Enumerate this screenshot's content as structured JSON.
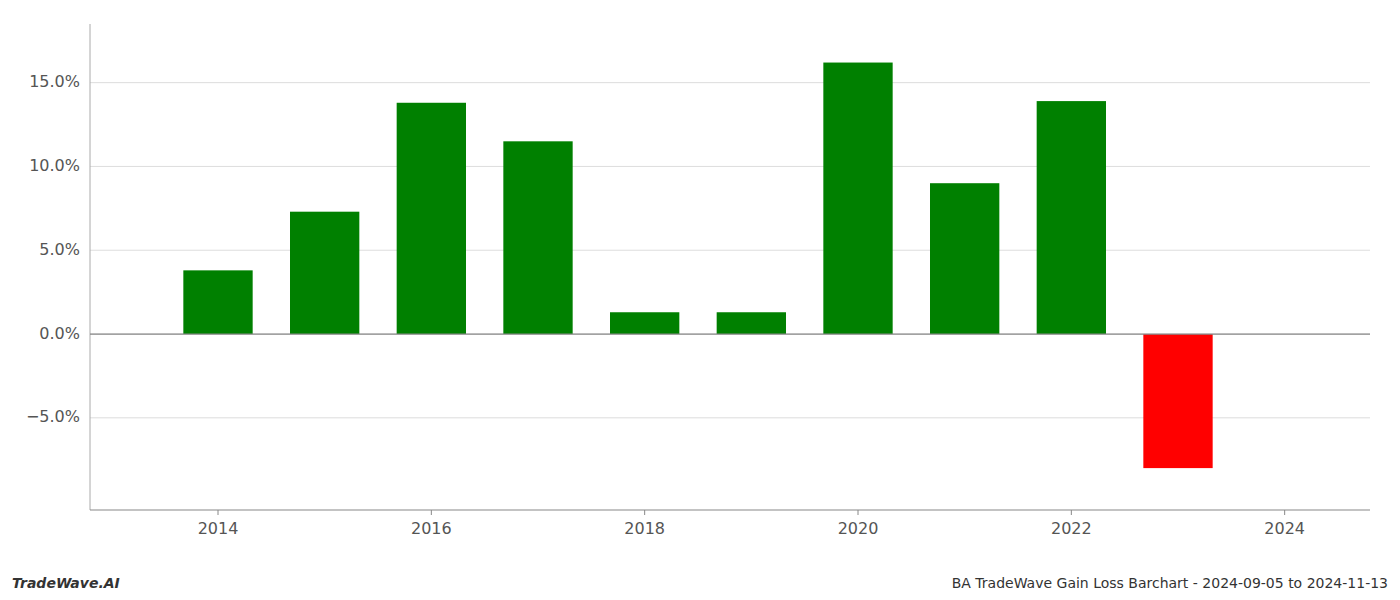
{
  "chart_data": {
    "type": "bar",
    "x": [
      2014,
      2015,
      2016,
      2017,
      2018,
      2019,
      2020,
      2021,
      2022,
      2023
    ],
    "values": [
      0.038,
      0.073,
      0.138,
      0.115,
      0.013,
      0.013,
      0.162,
      0.09,
      0.139,
      -0.08
    ],
    "colors": [
      "#008000",
      "#008000",
      "#008000",
      "#008000",
      "#008000",
      "#008000",
      "#008000",
      "#008000",
      "#008000",
      "#ff0000"
    ],
    "xlim": [
      2012.8,
      2024.8
    ],
    "xticks": [
      2014,
      2016,
      2018,
      2020,
      2022,
      2024
    ],
    "ylim": [
      -0.105,
      0.185
    ],
    "yticks": [
      {
        "value": -0.05,
        "label": "−5.0%"
      },
      {
        "value": 0.0,
        "label": "0.0%"
      },
      {
        "value": 0.05,
        "label": "5.0%"
      },
      {
        "value": 0.1,
        "label": "10.0%"
      },
      {
        "value": 0.15,
        "label": "15.0%"
      }
    ],
    "grid": true,
    "annotations": [
      "TradeWave.AI",
      "BA TradeWave Gain Loss Barchart - 2024-09-05 to 2024-11-13"
    ]
  }
}
